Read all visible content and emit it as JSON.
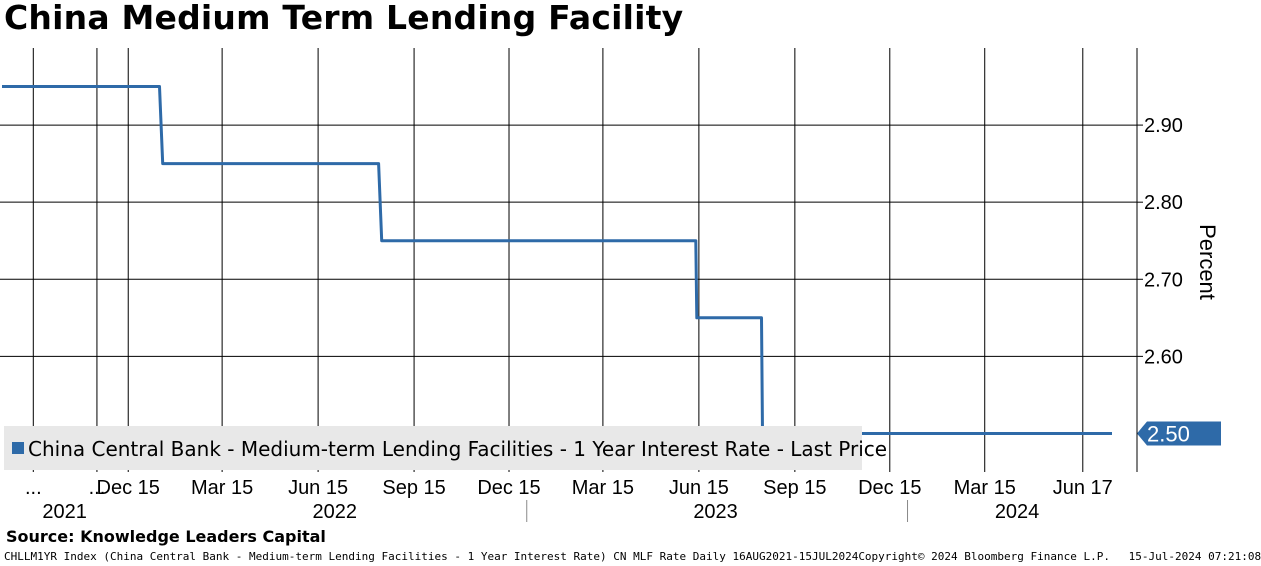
{
  "title": "China Medium Term Lending Facility",
  "source": "Source: Knowledge Leaders Capital",
  "footer": {
    "description": "CHLLM1YR Index (China Central Bank - Medium-term Lending Facilities - 1 Year Interest Rate) CN MLF Rate  Daily 16AUG2021-15JUL2024",
    "copyright": "Copyright© 2024 Bloomberg Finance L.P.",
    "timestamp": "15-Jul-2024 07:21:08"
  },
  "colors": {
    "line": "#2e6aa8",
    "grid": "#000000",
    "legend_bg": "#e8e8e8"
  },
  "chart_data": {
    "type": "line",
    "ylabel": "Percent",
    "ylim": [
      2.45,
      3.0
    ],
    "yticks": [
      2.9,
      2.8,
      2.7,
      2.6
    ],
    "ytick_labels": [
      "2.90",
      "2.80",
      "2.70",
      "2.60"
    ],
    "xlim": [
      "2021-08-16",
      "2024-07-15"
    ],
    "xticks": [
      {
        "date": "2021-09-15",
        "label": "..."
      },
      {
        "date": "2021-11-15",
        "label": "..."
      },
      {
        "date": "2021-12-15",
        "label": "Dec 15"
      },
      {
        "date": "2022-03-15",
        "label": "Mar 15"
      },
      {
        "date": "2022-06-15",
        "label": "Jun 15"
      },
      {
        "date": "2022-09-15",
        "label": "Sep 15"
      },
      {
        "date": "2022-12-15",
        "label": "Dec 15"
      },
      {
        "date": "2023-03-15",
        "label": "Mar 15"
      },
      {
        "date": "2023-06-15",
        "label": "Jun 15"
      },
      {
        "date": "2023-09-15",
        "label": "Sep 15"
      },
      {
        "date": "2023-12-15",
        "label": "Dec 15"
      },
      {
        "date": "2024-03-15",
        "label": "Mar 15"
      },
      {
        "date": "2024-06-17",
        "label": "Jun 17"
      }
    ],
    "year_labels": [
      {
        "label": "2021",
        "date": "2021-10-15"
      },
      {
        "label": "2022",
        "date": "2022-07-01"
      },
      {
        "label": "2023",
        "date": "2023-07-01"
      },
      {
        "label": "2024",
        "date": "2024-04-15"
      }
    ],
    "year_separators": [
      "2023-01-01",
      "2024-01-01"
    ],
    "grid": true,
    "legend_position": "bottom-left",
    "series": [
      {
        "name": "China Central Bank - Medium-term Lending Facilities - 1 Year Interest Rate - Last Price",
        "last_value_label": "2.50",
        "points": [
          {
            "x": "2021-08-16",
            "y": 2.95
          },
          {
            "x": "2022-01-14",
            "y": 2.95
          },
          {
            "x": "2022-01-17",
            "y": 2.85
          },
          {
            "x": "2022-08-12",
            "y": 2.85
          },
          {
            "x": "2022-08-15",
            "y": 2.75
          },
          {
            "x": "2023-06-12",
            "y": 2.75
          },
          {
            "x": "2023-06-13",
            "y": 2.65
          },
          {
            "x": "2023-08-14",
            "y": 2.65
          },
          {
            "x": "2023-08-15",
            "y": 2.5
          },
          {
            "x": "2024-07-15",
            "y": 2.5
          }
        ]
      }
    ]
  }
}
